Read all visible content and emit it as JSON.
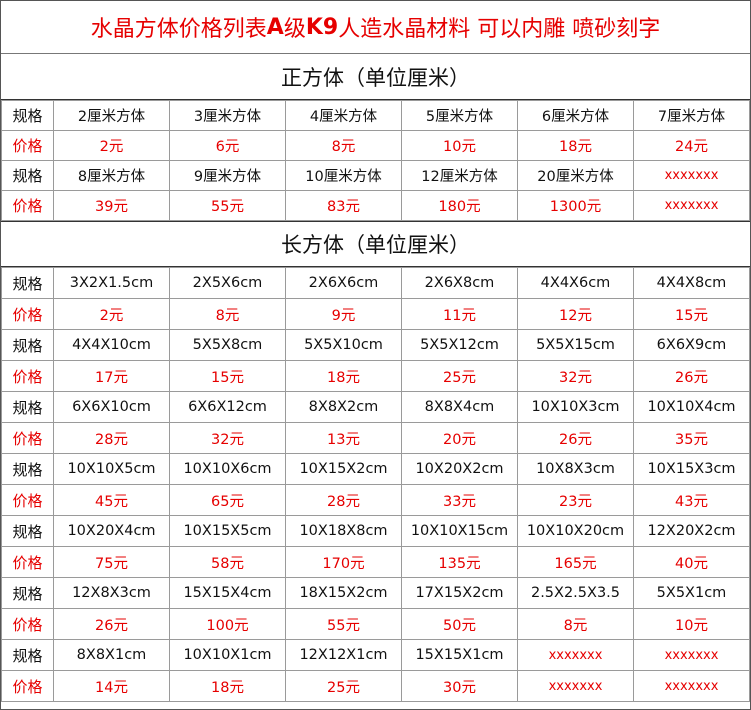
{
  "header": {
    "title_part1": "水晶方体价格列表",
    "title_bold": "A",
    "title_part2": "级",
    "title_bold2": "K9",
    "title_part3": "人造水晶材料 可以内雕 喷砂刻字"
  },
  "cube_section": {
    "heading": "正方体（单位厘米）",
    "rows": [
      {
        "label": "规格",
        "type": "spec",
        "cells": [
          "2厘米方体",
          "3厘米方体",
          "4厘米方体",
          "5厘米方体",
          "6厘米方体",
          "7厘米方体"
        ]
      },
      {
        "label": "价格",
        "type": "price",
        "cells": [
          "2元",
          "6元",
          "8元",
          "10元",
          "18元",
          "24元"
        ]
      },
      {
        "label": "规格",
        "type": "spec",
        "cells": [
          "8厘米方体",
          "9厘米方体",
          "10厘米方体",
          "12厘米方体",
          "20厘米方体",
          "xxxxxxx"
        ]
      },
      {
        "label": "价格",
        "type": "price",
        "cells": [
          "39元",
          "55元",
          "83元",
          "180元",
          "1300元",
          "xxxxxxx"
        ]
      }
    ]
  },
  "cuboid_section": {
    "heading": "长方体（单位厘米）",
    "rows": [
      {
        "label": "规格",
        "type": "spec",
        "cells": [
          "3X2X1.5cm",
          "2X5X6cm",
          "2X6X6cm",
          "2X6X8cm",
          "4X4X6cm",
          "4X4X8cm"
        ]
      },
      {
        "label": "价格",
        "type": "price",
        "cells": [
          "2元",
          "8元",
          "9元",
          "11元",
          "12元",
          "15元"
        ]
      },
      {
        "label": "规格",
        "type": "spec",
        "cells": [
          "4X4X10cm",
          "5X5X8cm",
          "5X5X10cm",
          "5X5X12cm",
          "5X5X15cm",
          "6X6X9cm"
        ]
      },
      {
        "label": "价格",
        "type": "price",
        "cells": [
          "17元",
          "15元",
          "18元",
          "25元",
          "32元",
          "26元"
        ]
      },
      {
        "label": "规格",
        "type": "spec",
        "cells": [
          "6X6X10cm",
          "6X6X12cm",
          "8X8X2cm",
          "8X8X4cm",
          "10X10X3cm",
          "10X10X4cm"
        ]
      },
      {
        "label": "价格",
        "type": "price",
        "cells": [
          "28元",
          "32元",
          "13元",
          "20元",
          "26元",
          "35元"
        ]
      },
      {
        "label": "规格",
        "type": "spec",
        "cells": [
          "10X10X5cm",
          "10X10X6cm",
          "10X15X2cm",
          "10X20X2cm",
          "10X8X3cm",
          "10X15X3cm"
        ]
      },
      {
        "label": "价格",
        "type": "price",
        "cells": [
          "45元",
          "65元",
          "28元",
          "33元",
          "23元",
          "43元"
        ]
      },
      {
        "label": "规格",
        "type": "spec",
        "cells": [
          "10X20X4cm",
          "10X15X5cm",
          "10X18X8cm",
          "10X10X15cm",
          "10X10X20cm",
          "12X20X2cm"
        ]
      },
      {
        "label": "价格",
        "type": "price",
        "cells": [
          "75元",
          "58元",
          "170元",
          "135元",
          "165元",
          "40元"
        ]
      },
      {
        "label": "规格",
        "type": "spec",
        "cells": [
          "12X8X3cm",
          "15X15X4cm",
          "18X15X2cm",
          "17X15X2cm",
          "2.5X2.5X3.5",
          "5X5X1cm"
        ]
      },
      {
        "label": "价格",
        "type": "price",
        "cells": [
          "26元",
          "100元",
          "55元",
          "50元",
          "8元",
          "10元"
        ]
      },
      {
        "label": "规格",
        "type": "spec",
        "cells": [
          "8X8X1cm",
          "10X10X1cm",
          "12X12X1cm",
          "15X15X1cm",
          "xxxxxxx",
          "xxxxxxx"
        ]
      },
      {
        "label": "价格",
        "type": "price",
        "cells": [
          "14元",
          "18元",
          "25元",
          "30元",
          "xxxxxxx",
          "xxxxxxx"
        ]
      }
    ]
  },
  "colors": {
    "price_text": "#e60000",
    "title_text": "#e60000"
  }
}
